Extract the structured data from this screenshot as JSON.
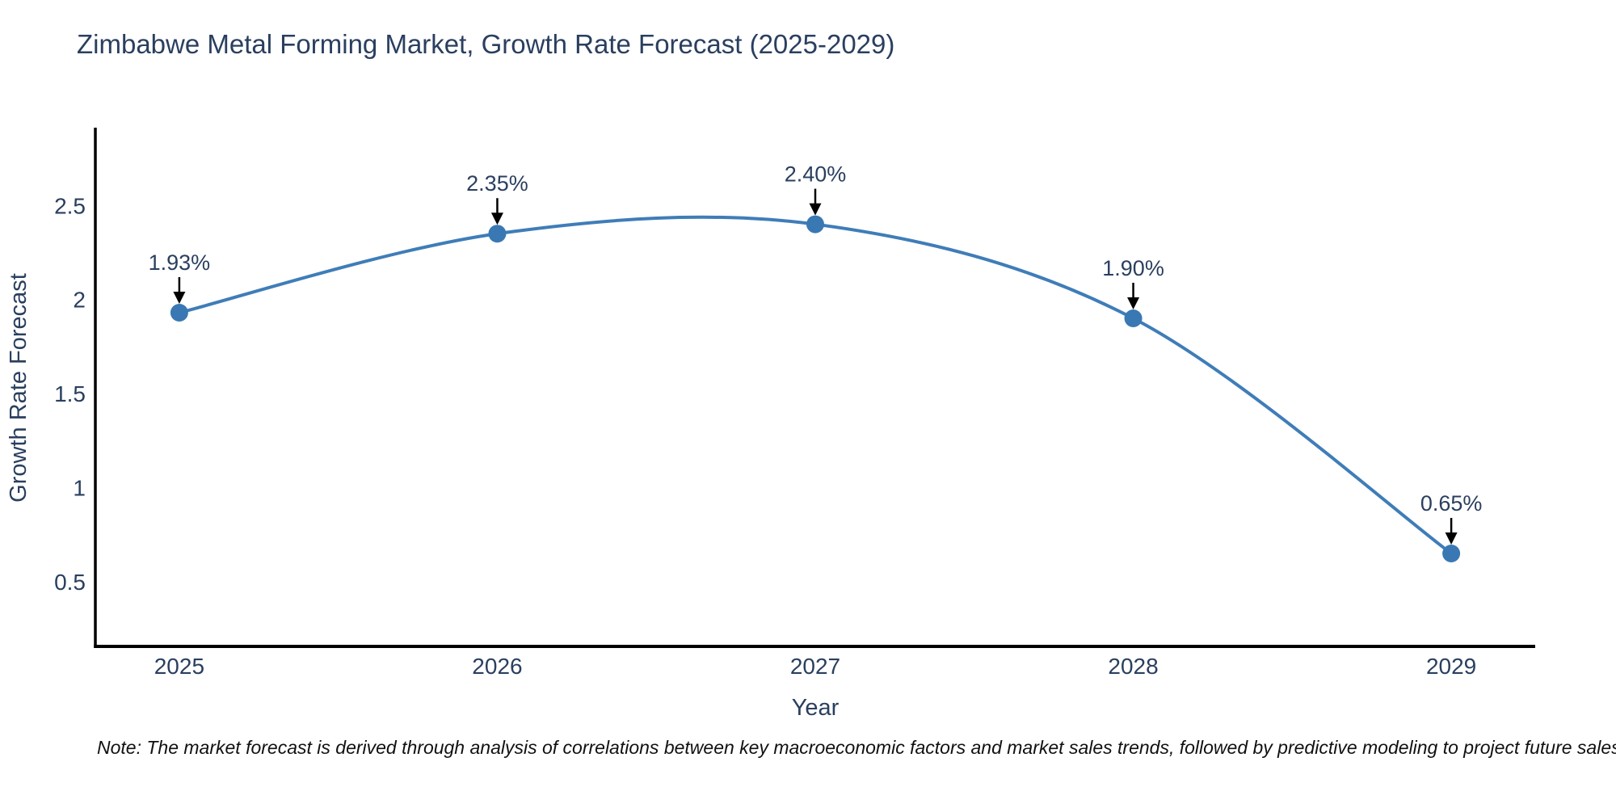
{
  "note": "Note: The market forecast is derived through analysis of correlations between key macroeconomic factors and market sales trends, followed by predictive modeling to project future sales",
  "chart_data": {
    "type": "line",
    "title": "Zimbabwe Metal Forming Market, Growth Rate Forecast (2025-2029)",
    "xlabel": "Year",
    "ylabel": "Growth Rate Forecast",
    "x": [
      2025,
      2026,
      2027,
      2028,
      2029
    ],
    "values": [
      1.93,
      2.35,
      2.4,
      1.9,
      0.65
    ],
    "point_labels": [
      "1.93%",
      "2.35%",
      "2.40%",
      "1.90%",
      "0.65%"
    ],
    "yticks": [
      0.5,
      1,
      1.5,
      2,
      2.5
    ],
    "xlim": [
      2024.736,
      2029.264
    ],
    "ylim": [
      0.156,
      2.905
    ],
    "line_shape": "spline",
    "grid": false,
    "legend": "none",
    "colors": {
      "line": "#3f7db8",
      "marker": "#3a78b4",
      "arrow": "#000000",
      "axis": "#000000",
      "text": "#2a3f5f",
      "note_text": "#111111"
    }
  }
}
